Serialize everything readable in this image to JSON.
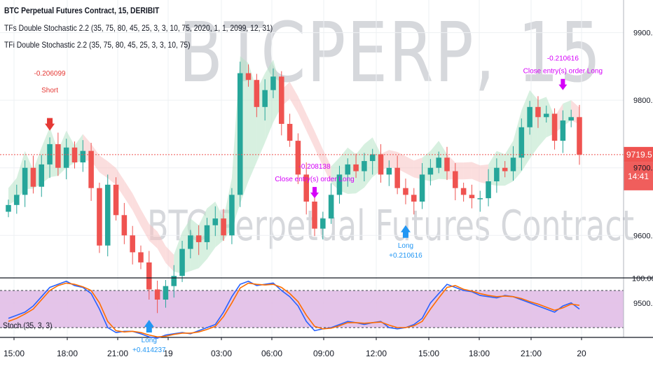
{
  "legend": {
    "title": "BTC Perpetual Futures Contract, 15, DERIBIT",
    "line1": "TFs Double Stochastic 2.2 (35, 75, 80, 45, 25, 3, 3, 10, 75, 2020, 1, 1, 2099, 12, 31)",
    "line2": "TFi Double Stochastic 2.2 (35, 75, 80, 45, 25, 3, 3, 10, 75)"
  },
  "watermark": {
    "symbol": "BTCPERP, 15",
    "description": "BTC Perpetual Futures Contract"
  },
  "stoch_label": "Stoch (35, 3, 3)",
  "colors": {
    "up": "#26a69a",
    "down": "#ef5350",
    "price_line": "#ef5350",
    "long": "#2196f3",
    "close": "#d500f9",
    "short": "#e53935",
    "stoch_k": "#2962ff",
    "stoch_d": "#ff6d00",
    "band_fill": "#e1bee7"
  },
  "chart_data": [
    {
      "type": "candlestick",
      "y_axis": {
        "ticks": [
          9500.0,
          9600.0,
          9700.0,
          9800.0,
          9900.0
        ],
        "labels": [
          "9500.0",
          "9600.0",
          "9700.0",
          "9800.0",
          "9900.0"
        ],
        "range": [
          9440,
          9970
        ]
      },
      "x_axis": {
        "labels": [
          "15:00",
          "18:00",
          "21:00",
          "19",
          "03:00",
          "06:00",
          "09:00",
          "12:00",
          "15:00",
          "18:00",
          "21:00",
          "20"
        ]
      },
      "last_price": "9719.5",
      "countdown": "14:41",
      "ohlc_anchor": [
        9645,
        9660,
        9700,
        9672,
        9705,
        9735,
        9700,
        9730,
        9708,
        9725,
        9670,
        9585,
        9675,
        9630,
        9600,
        9575,
        9560,
        9520,
        9505,
        9525,
        9540,
        9580,
        9600,
        9590,
        9615,
        9625,
        9600,
        9660,
        9840,
        9830,
        9790,
        9815,
        9835,
        9765,
        9740,
        9690,
        9650,
        9610,
        9625,
        9660,
        9690,
        9705,
        9695,
        9710,
        9720,
        9690,
        9700,
        9670,
        9660,
        9650,
        9690,
        9700,
        9715,
        9695,
        9670,
        9660,
        9655,
        9655,
        9680,
        9700,
        9695,
        9715,
        9760,
        9790,
        9775,
        9780,
        9740,
        9770,
        9775,
        9719.5
      ],
      "markers": [
        {
          "label": "Short",
          "value": "-0.206099",
          "kind": "short",
          "candle": 5
        },
        {
          "label": "Long",
          "value": "+0.414237",
          "kind": "long",
          "candle": 17
        },
        {
          "label": "Close entry(s) order Long",
          "value": "-0.208138",
          "kind": "close",
          "candle": 37
        },
        {
          "label": "Long",
          "value": "+0.210616",
          "kind": "long",
          "candle": 48
        },
        {
          "label": "Close entry(s) order Long",
          "value": "-0.210616",
          "kind": "close",
          "candle": 67
        }
      ]
    },
    {
      "type": "line",
      "title": "Stoch (35, 3, 3)",
      "ylim": [
        0,
        100
      ],
      "y_axis": {
        "ticks": [
          100.0
        ],
        "labels": [
          "100.00"
        ]
      },
      "bands": [
        80,
        20
      ],
      "series": [
        {
          "name": "%K",
          "values": [
            35,
            40,
            45,
            55,
            70,
            85,
            90,
            95,
            88,
            85,
            75,
            50,
            20,
            12,
            14,
            14,
            10,
            5,
            3,
            8,
            10,
            12,
            10,
            15,
            20,
            25,
            45,
            70,
            90,
            95,
            88,
            90,
            92,
            80,
            70,
            55,
            30,
            15,
            18,
            20,
            25,
            30,
            28,
            25,
            28,
            30,
            20,
            18,
            20,
            25,
            35,
            60,
            75,
            90,
            85,
            80,
            78,
            72,
            70,
            68,
            72,
            70,
            65,
            60,
            55,
            50,
            45,
            55,
            60,
            50
          ]
        },
        {
          "name": "%D",
          "values": [
            30,
            35,
            42,
            50,
            65,
            80,
            88,
            92,
            90,
            86,
            80,
            60,
            30,
            15,
            13,
            14,
            12,
            8,
            5,
            6,
            9,
            11,
            11,
            13,
            17,
            22,
            38,
            60,
            84,
            92,
            90,
            89,
            90,
            85,
            75,
            62,
            40,
            22,
            18,
            19,
            23,
            28,
            28,
            27,
            28,
            29,
            24,
            20,
            20,
            23,
            30,
            50,
            68,
            85,
            88,
            82,
            79,
            75,
            72,
            70,
            71,
            70,
            67,
            62,
            58,
            53,
            48,
            52,
            58,
            56
          ]
        }
      ]
    }
  ]
}
